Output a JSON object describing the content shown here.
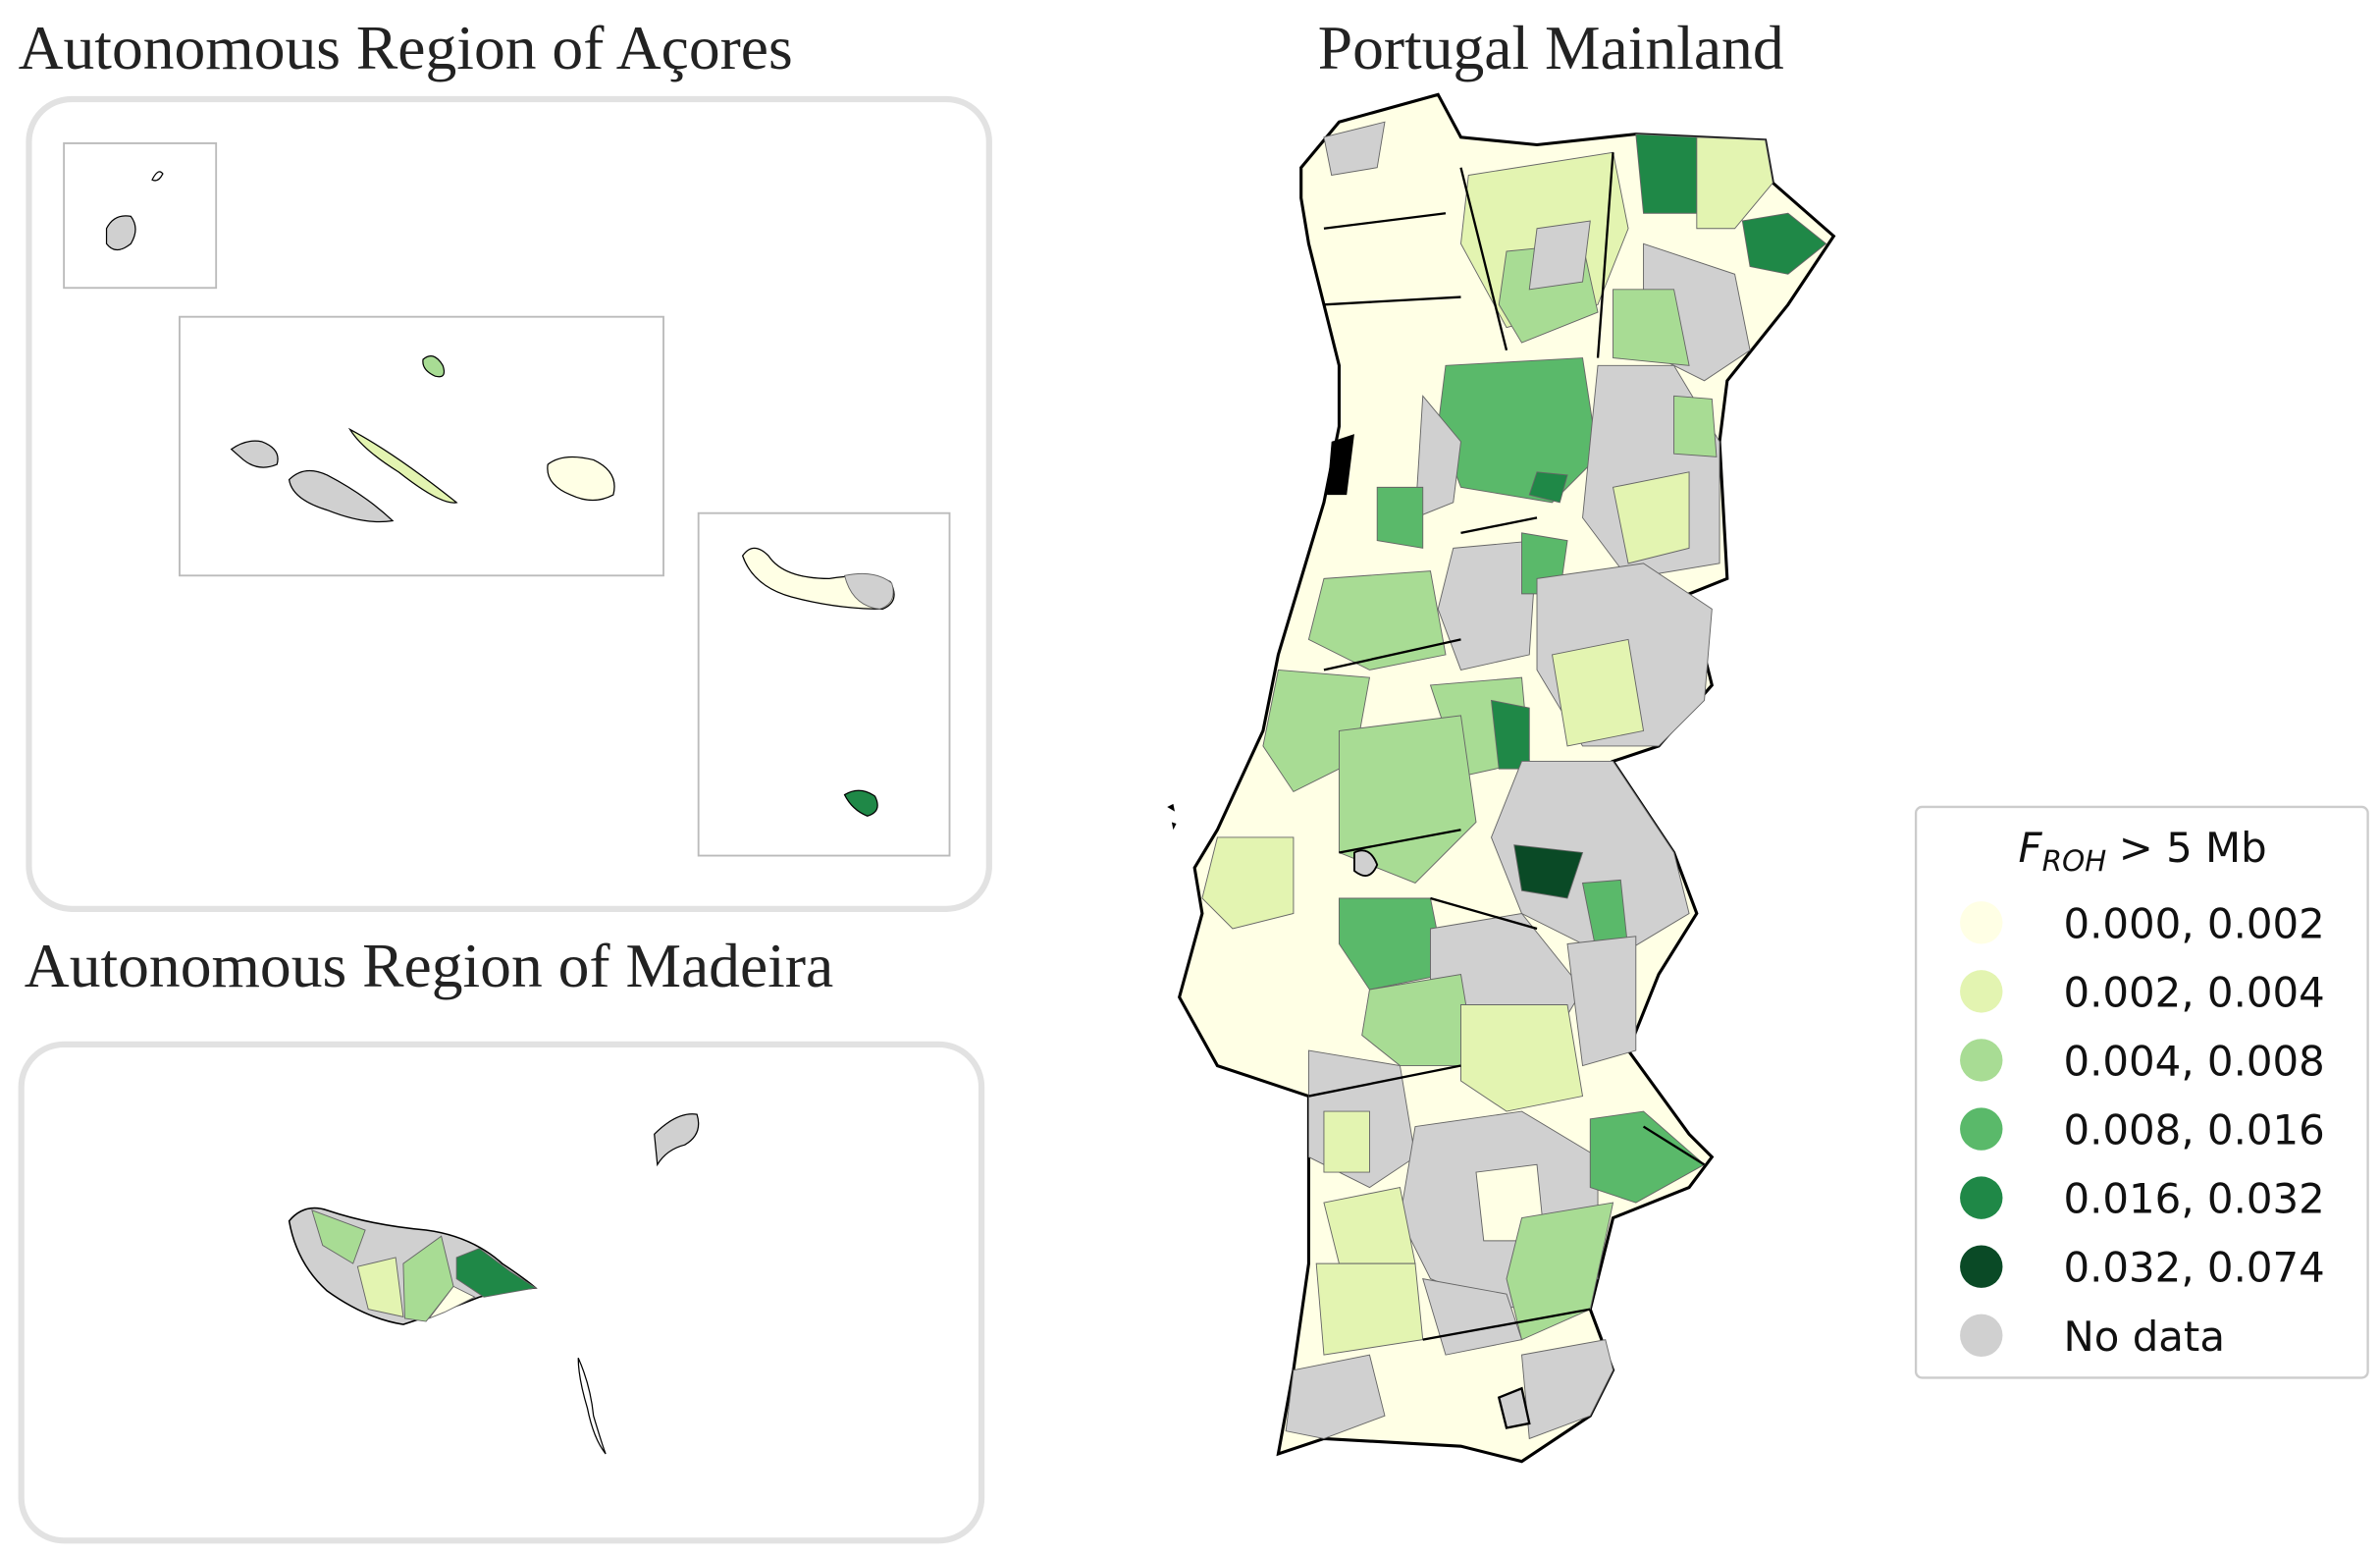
{
  "titles": {
    "azores": "Autonomous Region of Açores",
    "madeira": "Autonomous Region of Madeira",
    "mainland": "Portugal Mainland"
  },
  "legend": {
    "title": {
      "symbol": "F",
      "subscript": "ROH",
      "text": "> 5 Mb"
    },
    "items": [
      {
        "label": "0.000, 0.002",
        "color": "#ffffe5"
      },
      {
        "label": "0.002, 0.004",
        "color": "#e3f4b1"
      },
      {
        "label": "0.004, 0.008",
        "color": "#a8dc94"
      },
      {
        "label": "0.008, 0.016",
        "color": "#5ab96a"
      },
      {
        "label": "0.016, 0.032",
        "color": "#1f8847"
      },
      {
        "label": "0.032, 0.074",
        "color": "#0a4a26"
      },
      {
        "label": "No data",
        "color": "#d0d0d0"
      }
    ]
  }
}
